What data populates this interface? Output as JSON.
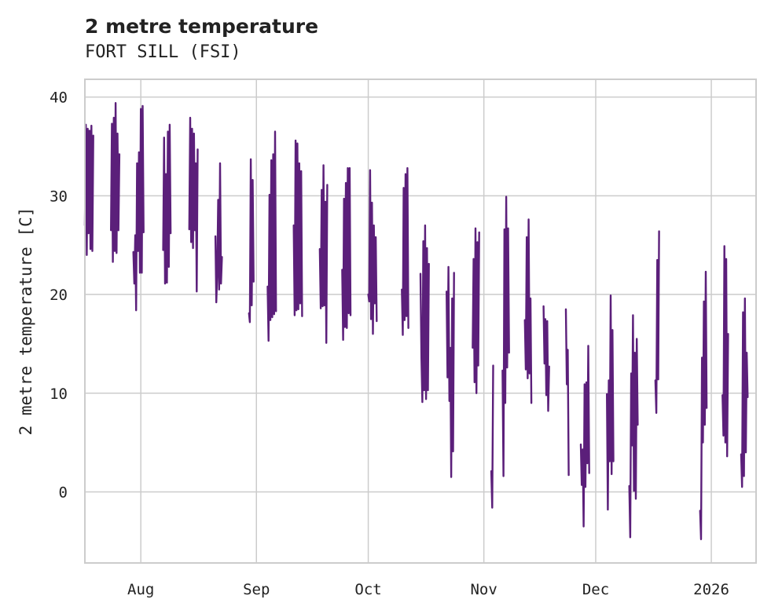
{
  "chart_data": {
    "type": "line",
    "title": "2 metre temperature",
    "subtitle": "FORT SILL (FSI)",
    "xlabel": "",
    "ylabel": "2 metre temperature [C]",
    "x_ticks": [
      "Aug",
      "Sep",
      "Oct",
      "Nov",
      "Dec",
      "2026"
    ],
    "x_tick_days": [
      15,
      46,
      76,
      107,
      137,
      168
    ],
    "xlim_days": [
      0,
      180
    ],
    "x_start_label": "mid-Jul 2025 (day 0 = Jul 17)",
    "y_ticks": [
      0,
      10,
      20,
      30,
      40
    ],
    "ylim": [
      -7.2,
      41.8
    ],
    "grid": true,
    "series": [
      {
        "name": "2 metre temperature",
        "color": "#5b1f7a",
        "segments": [
          {
            "start_day": 0.0,
            "step_days": 0.25,
            "values": [
              27,
              37.2,
              24,
              36.8,
              26.2,
              36.6,
              24.6,
              37.1,
              24.4,
              36.1
            ]
          },
          {
            "start_day": 7.0,
            "step_days": 0.25,
            "values": [
              26.5,
              37.3,
              23.3,
              37.9,
              24.4,
              39.4,
              24.2,
              36.3,
              26.5,
              34.2
            ]
          },
          {
            "start_day": 13.0,
            "step_days": 0.25,
            "values": [
              24.3,
              21.1,
              26,
              18.4,
              33.3,
              24.4,
              34.4,
              22.2,
              38.8,
              22.2,
              39.1,
              26.3
            ]
          },
          {
            "start_day": 21.0,
            "step_days": 0.25,
            "values": [
              24.5,
              35.9,
              21.1,
              32.2,
              21.2,
              36.5,
              22.8,
              37.2,
              26.2
            ]
          },
          {
            "start_day": 28.0,
            "step_days": 0.25,
            "values": [
              26.6,
              37.9,
              25.3,
              36.8,
              24.7,
              36.3,
              26.5,
              33.3,
              20.3,
              34.7
            ]
          },
          {
            "start_day": 35.0,
            "step_days": 0.25,
            "values": [
              25.9,
              19.2,
              22.2,
              29.6,
              20.5,
              33.3,
              21.1,
              23.8
            ]
          },
          {
            "start_day": 44.0,
            "step_days": 0.25,
            "values": [
              18.1,
              17.2,
              33.7,
              18.9,
              31.6,
              21.3
            ]
          },
          {
            "start_day": 49.0,
            "step_days": 0.25,
            "values": [
              20.8,
              15.3,
              30.1,
              17.4,
              33.6,
              17.7,
              34.2,
              18,
              36.5,
              18.3
            ]
          },
          {
            "start_day": 56.0,
            "step_days": 0.25,
            "values": [
              27,
              17.9,
              35.6,
              18.4,
              35.3,
              18.5,
              33.3,
              19.1,
              32.5,
              17.8
            ]
          },
          {
            "start_day": 63.0,
            "step_days": 0.25,
            "values": [
              24.6,
              18.6,
              30.6,
              18.8,
              33.1,
              18.9,
              29.4,
              15.1,
              31.1
            ]
          },
          {
            "start_day": 69.0,
            "step_days": 0.25,
            "values": [
              22.5,
              15.4,
              29.7,
              16.7,
              31.3,
              16.6,
              32.8,
              18.1,
              32.8,
              17.9
            ]
          },
          {
            "start_day": 76.0,
            "step_days": 0.25,
            "values": [
              20,
              19.3,
              32.6,
              17.5,
              29.3,
              16,
              27,
              19.1,
              25.8,
              17.3
            ]
          },
          {
            "start_day": 85.0,
            "step_days": 0.25,
            "values": [
              20.5,
              15.9,
              30.8,
              17.4,
              32.2,
              17.8,
              32.8,
              16.6
            ]
          },
          {
            "start_day": 90.0,
            "step_days": 0.25,
            "values": [
              22.1,
              13.6,
              9.1,
              25.4,
              10.3,
              27,
              9.4,
              24.7,
              10.3,
              23.1
            ]
          },
          {
            "start_day": 97.0,
            "step_days": 0.25,
            "values": [
              20.3,
              11.6,
              22.8,
              9.2,
              14.6,
              1.5,
              19.6,
              4.1,
              22.2
            ]
          },
          {
            "start_day": 104.0,
            "step_days": 0.25,
            "values": [
              14.6,
              23.6,
              11.1,
              26.7,
              10,
              25.3,
              12.8,
              26.3
            ]
          },
          {
            "start_day": 109.0,
            "step_days": 0.25,
            "values": [
              2.1,
              -1.6,
              12.8
            ]
          },
          {
            "start_day": 112.0,
            "step_days": 0.25,
            "values": [
              12.3,
              1.6,
              26.6,
              9,
              29.9,
              12.6,
              26.7,
              14.1
            ]
          },
          {
            "start_day": 118.0,
            "step_days": 0.25,
            "values": [
              17.4,
              12.4,
              25.8,
              11.5,
              27.6,
              12,
              19.6,
              9
            ]
          },
          {
            "start_day": 123.0,
            "step_days": 0.25,
            "values": [
              18.8,
              13,
              17.5,
              9.8,
              17.3,
              8.2,
              12.7
            ]
          },
          {
            "start_day": 129.0,
            "step_days": 0.25,
            "values": [
              18.5,
              10.9,
              14.4,
              1.7
            ]
          },
          {
            "start_day": 133.0,
            "step_days": 0.25,
            "values": [
              4.8,
              0.7,
              4.3,
              -3.5,
              10.9,
              0.5,
              11.1,
              2.9,
              14.8,
              1.9
            ]
          },
          {
            "start_day": 140.0,
            "step_days": 0.25,
            "values": [
              9.9,
              -1.8,
              11.3,
              3.1,
              19.9,
              1.8,
              16.4,
              3.1
            ]
          },
          {
            "start_day": 146.0,
            "step_days": 0.25,
            "values": [
              0.6,
              -4.6,
              12,
              4.7,
              17.9,
              0.1,
              14.1,
              -0.7,
              15.5,
              6.8
            ]
          },
          {
            "start_day": 153.0,
            "step_days": 0.25,
            "values": [
              11.3,
              8,
              23.5,
              11.4,
              26.4
            ]
          },
          {
            "start_day": 165.0,
            "step_days": 0.25,
            "values": [
              -1.9,
              -4.8,
              13.6,
              5,
              19.3,
              6.8,
              22.3,
              8.5
            ]
          },
          {
            "start_day": 171.0,
            "step_days": 0.25,
            "values": [
              9.8,
              5.7,
              24.9,
              5,
              23.6,
              3.6,
              16
            ]
          },
          {
            "start_day": 176.0,
            "step_days": 0.25,
            "values": [
              3.8,
              0.5,
              18.2,
              1.6,
              19.6,
              4,
              14.1,
              9.6
            ]
          }
        ]
      }
    ]
  }
}
